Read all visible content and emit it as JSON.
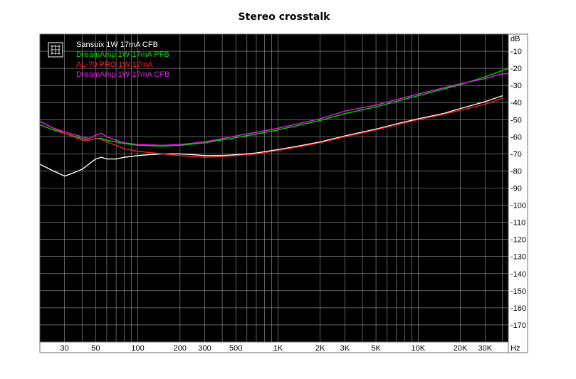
{
  "chart_data": {
    "type": "line",
    "title": "Stereo crosstalk",
    "xlabel": "Hz",
    "ylabel": "dB",
    "x_scale": "log",
    "xlim": [
      20,
      44000
    ],
    "ylim": [
      -180,
      0
    ],
    "x_ticks": [
      {
        "value": 30,
        "label": "30"
      },
      {
        "value": 50,
        "label": "50"
      },
      {
        "value": 100,
        "label": "100"
      },
      {
        "value": 200,
        "label": "200"
      },
      {
        "value": 300,
        "label": "300"
      },
      {
        "value": 500,
        "label": "500"
      },
      {
        "value": 1000,
        "label": "1K"
      },
      {
        "value": 2000,
        "label": "2K"
      },
      {
        "value": 3000,
        "label": "3K"
      },
      {
        "value": 5000,
        "label": "5K"
      },
      {
        "value": 10000,
        "label": "10K"
      },
      {
        "value": 20000,
        "label": "20K"
      },
      {
        "value": 30000,
        "label": "30K"
      }
    ],
    "y_ticks": [
      {
        "value": -10,
        "label": "-10"
      },
      {
        "value": -20,
        "label": "-20"
      },
      {
        "value": -30,
        "label": "-30"
      },
      {
        "value": -40,
        "label": "-40"
      },
      {
        "value": -50,
        "label": "-50"
      },
      {
        "value": -60,
        "label": "-60"
      },
      {
        "value": -70,
        "label": "-70"
      },
      {
        "value": -80,
        "label": "-80"
      },
      {
        "value": -90,
        "label": "-90"
      },
      {
        "value": -100,
        "label": "-100"
      },
      {
        "value": -110,
        "label": "-110"
      },
      {
        "value": -120,
        "label": "-120"
      },
      {
        "value": -130,
        "label": "-130"
      },
      {
        "value": -140,
        "label": "-140"
      },
      {
        "value": -150,
        "label": "-150"
      },
      {
        "value": -160,
        "label": "-160"
      },
      {
        "value": -170,
        "label": "-170"
      }
    ],
    "grid": true,
    "legend_position": "top-left",
    "background_color": "#000000",
    "series": [
      {
        "name": "Sansuix 1W 17mA CFB",
        "color": "#ffffff",
        "points": [
          [
            20,
            -76
          ],
          [
            25,
            -80
          ],
          [
            30,
            -83
          ],
          [
            35,
            -81
          ],
          [
            40,
            -79
          ],
          [
            50,
            -73
          ],
          [
            55,
            -72
          ],
          [
            60,
            -73
          ],
          [
            70,
            -73
          ],
          [
            80,
            -72
          ],
          [
            90,
            -71.5
          ],
          [
            100,
            -71
          ],
          [
            120,
            -70.5
          ],
          [
            150,
            -70
          ],
          [
            200,
            -70
          ],
          [
            250,
            -70.5
          ],
          [
            300,
            -71
          ],
          [
            400,
            -71
          ],
          [
            500,
            -70.5
          ],
          [
            700,
            -69.5
          ],
          [
            1000,
            -67.5
          ],
          [
            1500,
            -65
          ],
          [
            2000,
            -63
          ],
          [
            3000,
            -59.5
          ],
          [
            5000,
            -55.5
          ],
          [
            7000,
            -52.5
          ],
          [
            10000,
            -49.5
          ],
          [
            15000,
            -46.5
          ],
          [
            20000,
            -43.5
          ],
          [
            30000,
            -39.5
          ],
          [
            40000,
            -36
          ]
        ]
      },
      {
        "name": "DreamAmp 1W 17mA PFB",
        "color": "#00d800",
        "points": [
          [
            20,
            -53
          ],
          [
            25,
            -56
          ],
          [
            30,
            -58
          ],
          [
            40,
            -61
          ],
          [
            45,
            -62
          ],
          [
            50,
            -61
          ],
          [
            55,
            -61
          ],
          [
            60,
            -62
          ],
          [
            70,
            -63
          ],
          [
            80,
            -64
          ],
          [
            100,
            -65
          ],
          [
            150,
            -65.5
          ],
          [
            200,
            -65
          ],
          [
            300,
            -63.5
          ],
          [
            500,
            -60.5
          ],
          [
            1000,
            -56
          ],
          [
            2000,
            -50.5
          ],
          [
            3000,
            -46.5
          ],
          [
            5000,
            -42.5
          ],
          [
            10000,
            -36
          ],
          [
            20000,
            -29.5
          ],
          [
            30000,
            -25
          ],
          [
            44000,
            -20
          ]
        ]
      },
      {
        "name": "AL-70 PRO 1W 17mA",
        "color": "#ff1e1e",
        "points": [
          [
            20,
            -51
          ],
          [
            25,
            -55
          ],
          [
            30,
            -58
          ],
          [
            35,
            -60
          ],
          [
            40,
            -62
          ],
          [
            45,
            -62
          ],
          [
            50,
            -61
          ],
          [
            55,
            -61.5
          ],
          [
            60,
            -63
          ],
          [
            70,
            -65
          ],
          [
            80,
            -67
          ],
          [
            100,
            -68.5
          ],
          [
            150,
            -70
          ],
          [
            200,
            -71
          ],
          [
            300,
            -72
          ],
          [
            400,
            -71.5
          ],
          [
            500,
            -71
          ],
          [
            700,
            -70
          ],
          [
            1000,
            -68
          ],
          [
            1500,
            -65.5
          ],
          [
            2000,
            -63.5
          ],
          [
            3000,
            -60
          ],
          [
            5000,
            -56
          ],
          [
            7000,
            -53
          ],
          [
            10000,
            -50
          ],
          [
            15000,
            -47
          ],
          [
            20000,
            -44.5
          ],
          [
            30000,
            -41
          ],
          [
            40000,
            -37.5
          ]
        ]
      },
      {
        "name": "DreamAmp 1W 17mA CFB",
        "color": "#e020e0",
        "points": [
          [
            20,
            -51
          ],
          [
            25,
            -55
          ],
          [
            30,
            -57
          ],
          [
            40,
            -60
          ],
          [
            45,
            -61
          ],
          [
            50,
            -59
          ],
          [
            55,
            -58
          ],
          [
            60,
            -60
          ],
          [
            70,
            -62
          ],
          [
            80,
            -63.5
          ],
          [
            100,
            -64.5
          ],
          [
            150,
            -65
          ],
          [
            200,
            -64.5
          ],
          [
            300,
            -63
          ],
          [
            500,
            -59.5
          ],
          [
            1000,
            -55
          ],
          [
            2000,
            -49.5
          ],
          [
            3000,
            -45
          ],
          [
            5000,
            -41.5
          ],
          [
            10000,
            -35
          ],
          [
            20000,
            -29
          ],
          [
            30000,
            -26
          ],
          [
            38000,
            -23.5
          ],
          [
            44000,
            -23
          ]
        ]
      }
    ]
  }
}
